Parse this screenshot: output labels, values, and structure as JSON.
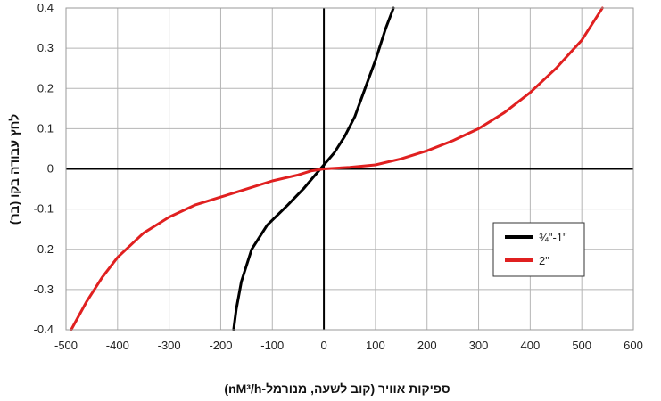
{
  "chart_data": {
    "type": "line",
    "xlabel": "ספיקות אוויר (קוב לשעה, מנורמל-nM³/h)",
    "ylabel": "לחץ עבודה בקו (בר)",
    "xlim": [
      -500,
      600
    ],
    "ylim": [
      -0.4,
      0.4
    ],
    "x_ticks": [
      -500,
      -400,
      -300,
      -200,
      -100,
      0,
      100,
      200,
      300,
      400,
      500,
      600
    ],
    "y_ticks": [
      -0.4,
      -0.3,
      -0.2,
      -0.1,
      0,
      0.1,
      0.2,
      0.3,
      0.4
    ],
    "x_tick_labels": [
      "-500",
      "-400",
      "-300",
      "-200",
      "-100",
      "0",
      "100",
      "200",
      "300",
      "400",
      "500",
      "600"
    ],
    "y_tick_labels": [
      "-0.4",
      "-0.3",
      "-0.2",
      "-0.1",
      "0",
      "0.1",
      "0.2",
      "0.3",
      "0.4"
    ],
    "grid": true,
    "legend_position": "right",
    "series": [
      {
        "name": "¾\"-1\"",
        "color": "#000000",
        "points": [
          [
            -175,
            -0.4
          ],
          [
            -170,
            -0.35
          ],
          [
            -160,
            -0.28
          ],
          [
            -140,
            -0.2
          ],
          [
            -110,
            -0.14
          ],
          [
            -70,
            -0.09
          ],
          [
            -40,
            -0.05
          ],
          [
            -20,
            -0.02
          ],
          [
            0,
            0.01
          ],
          [
            20,
            0.04
          ],
          [
            40,
            0.08
          ],
          [
            60,
            0.13
          ],
          [
            80,
            0.2
          ],
          [
            100,
            0.27
          ],
          [
            120,
            0.35
          ],
          [
            135,
            0.4
          ]
        ]
      },
      {
        "name": "2\"",
        "color": "#e02020",
        "points": [
          [
            -490,
            -0.4
          ],
          [
            -460,
            -0.33
          ],
          [
            -430,
            -0.27
          ],
          [
            -400,
            -0.22
          ],
          [
            -350,
            -0.16
          ],
          [
            -300,
            -0.12
          ],
          [
            -250,
            -0.09
          ],
          [
            -200,
            -0.07
          ],
          [
            -150,
            -0.05
          ],
          [
            -100,
            -0.03
          ],
          [
            -50,
            -0.015
          ],
          [
            -25,
            -0.005
          ],
          [
            0,
            0.0
          ],
          [
            50,
            0.004
          ],
          [
            100,
            0.01
          ],
          [
            150,
            0.025
          ],
          [
            200,
            0.045
          ],
          [
            250,
            0.07
          ],
          [
            300,
            0.1
          ],
          [
            350,
            0.14
          ],
          [
            400,
            0.19
          ],
          [
            450,
            0.25
          ],
          [
            500,
            0.32
          ],
          [
            540,
            0.4
          ]
        ]
      }
    ]
  }
}
